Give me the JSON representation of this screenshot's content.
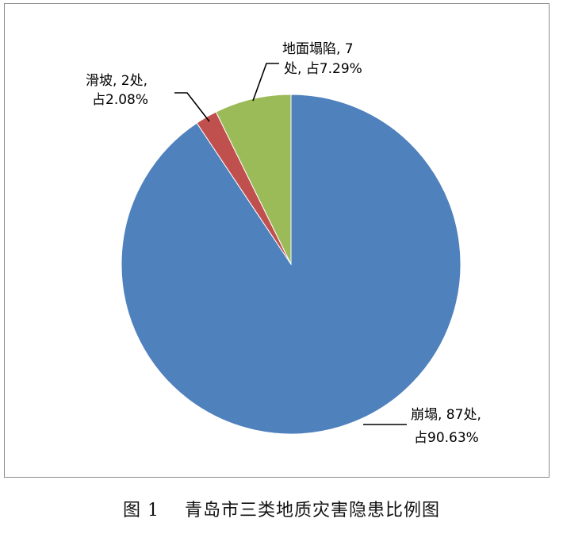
{
  "caption": "图 1    青岛市三类地质灾害隐患比例图",
  "chart_data": {
    "type": "pie",
    "start_angle_deg": 0,
    "direction": "clockwise",
    "slices": [
      {
        "label": "崩塌",
        "count": 87,
        "value": 90.63,
        "label_line1": "崩塌, 87处,",
        "label_line2": "占90.63%",
        "color": "#4f81bd"
      },
      {
        "label": "滑坡",
        "count": 2,
        "value": 2.08,
        "label_line1": "滑坡, 2处,",
        "label_line2": "占2.08%",
        "color": "#c0504d"
      },
      {
        "label": "地面塌陷",
        "count": 7,
        "value": 7.29,
        "label_line1": "地面塌陷, 7",
        "label_line2": "处, 占7.29%",
        "color": "#9bbb59"
      }
    ]
  }
}
